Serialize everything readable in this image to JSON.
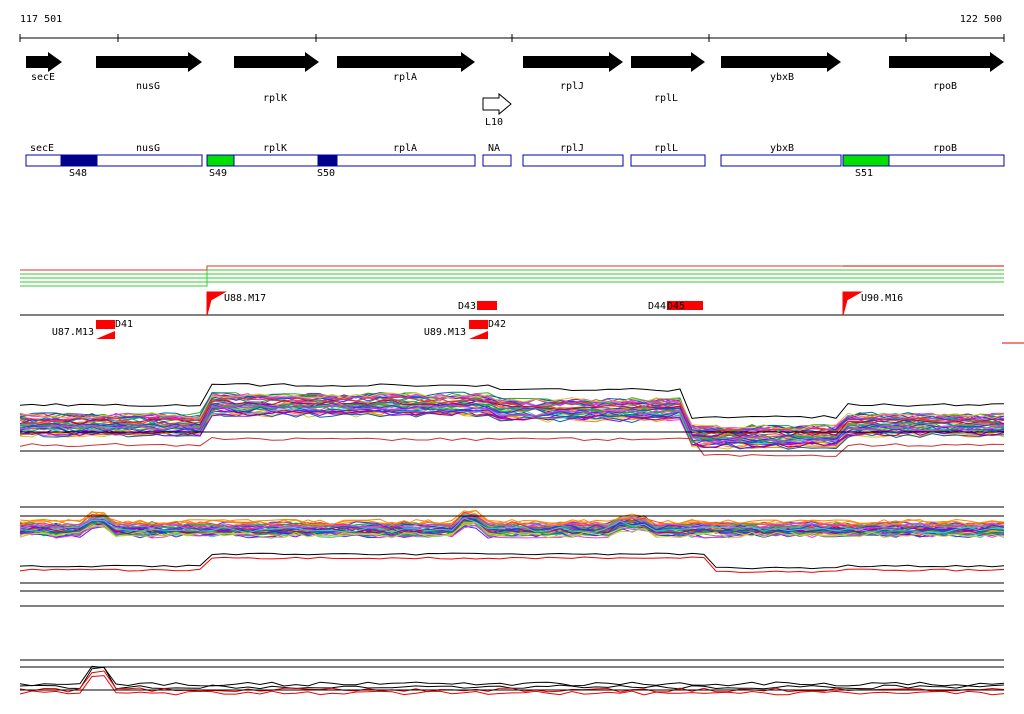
{
  "ruler": {
    "start": "117 501",
    "end": "122 500"
  },
  "genes": [
    "secE",
    "nusG",
    "rplK",
    "rplA",
    "L10",
    "rplJ",
    "rplL",
    "ybxB",
    "rpoB"
  ],
  "regions": [
    "secE",
    "nusG",
    "rplK",
    "rplA",
    "NA",
    "rplJ",
    "rplL",
    "ybxB",
    "rpoB"
  ],
  "segments": [
    "S48",
    "S49",
    "S50",
    "S51"
  ],
  "features": [
    "U88.M17",
    "D43",
    "D44",
    "D45",
    "U90.M16",
    "D41",
    "U87.M13",
    "D42",
    "U89.M13"
  ]
}
